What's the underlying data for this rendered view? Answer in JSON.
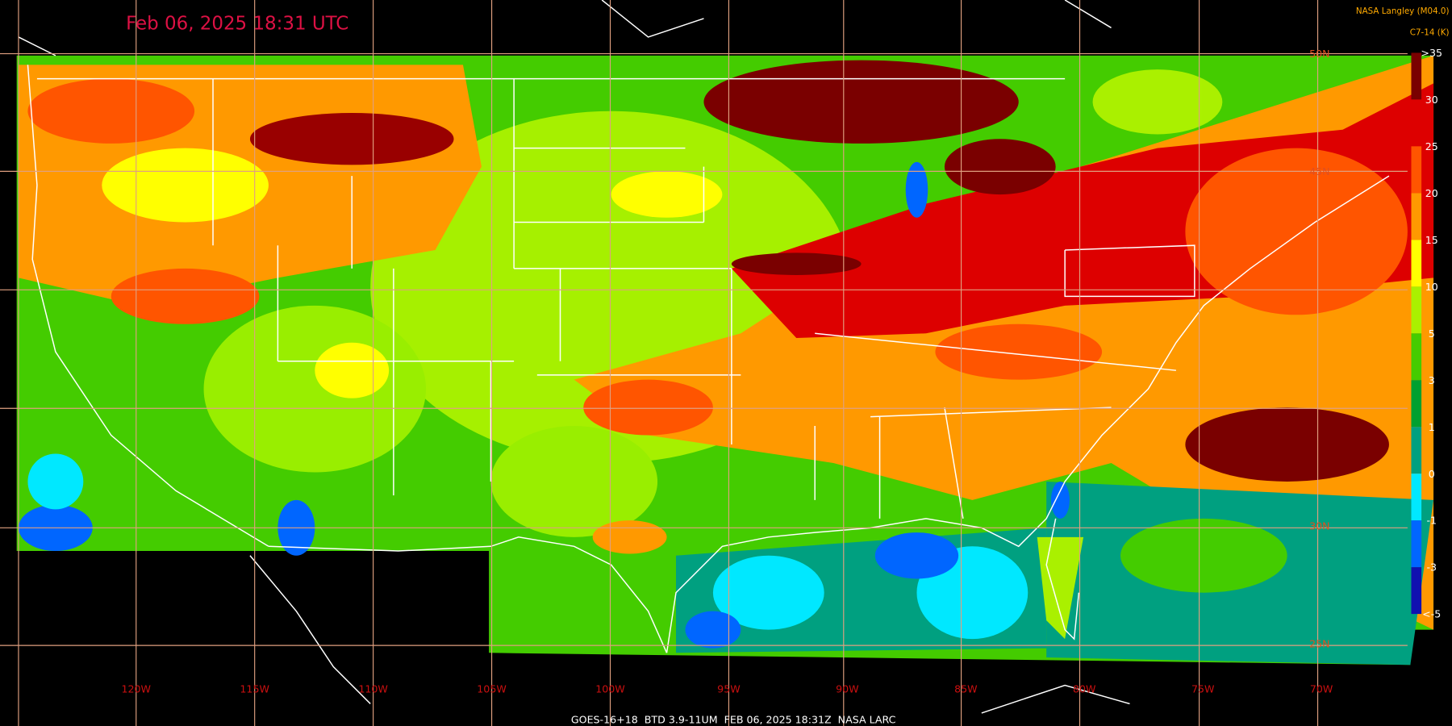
{
  "title": "Feb 06, 2025 18:31 UTC",
  "credit": "NASA Langley (M04.0)",
  "product": "C7-14 (K)",
  "colorbar": {
    "labels": [
      ">35",
      "30",
      "25",
      "20",
      "15",
      "10",
      "5",
      "3",
      "1",
      "0",
      "-1",
      "-3",
      "<-5"
    ],
    "colors": [
      "#7a0000",
      "#dd0000",
      "#ff5500",
      "#ff9900",
      "#ffff00",
      "#aaf000",
      "#44cc00",
      "#00a030",
      "#00a080",
      "#00e8ff",
      "#0066ff",
      "#1010b0"
    ]
  },
  "longitude_labels": [
    "120W",
    "115W",
    "110W",
    "105W",
    "100W",
    "95W",
    "90W",
    "85W",
    "80W",
    "75W",
    "70W"
  ],
  "latitude_labels": [
    "50N",
    "45N",
    "30N",
    "25N"
  ],
  "footer": "GOES-16+18  BTD 3.9-11UM  FEB 06, 2025 18:31Z  NASA LARC"
}
